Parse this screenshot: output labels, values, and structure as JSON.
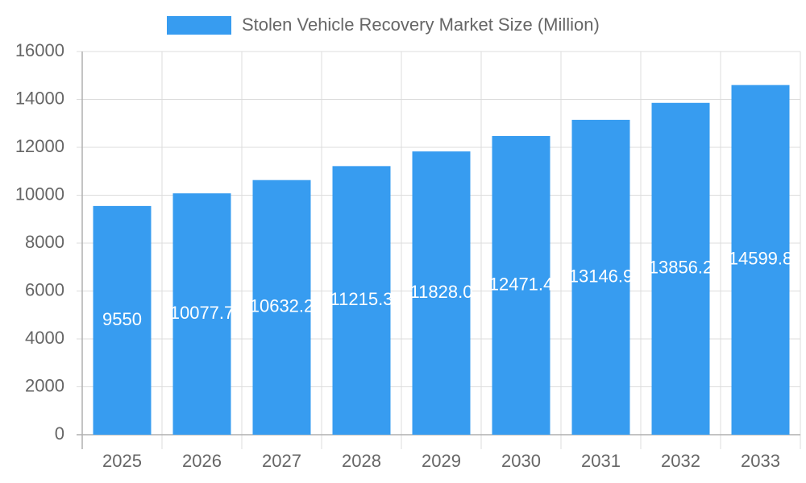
{
  "chart_data": {
    "type": "bar",
    "legend_label": "Stolen Vehicle Recovery Market Size (Million)",
    "categories": [
      "2025",
      "2026",
      "2027",
      "2028",
      "2029",
      "2030",
      "2031",
      "2032",
      "2033"
    ],
    "values": [
      9550,
      10077.7,
      10632.2,
      11215.3,
      11828.0,
      12471.4,
      13146.9,
      13856.2,
      14599.8
    ],
    "value_labels": [
      "9550",
      "10077.7",
      "10632.2",
      "11215.3",
      "11828.0",
      "12471.4",
      "13146.9",
      "13856.2",
      "14599.8"
    ],
    "color": "#379cf0",
    "ylim": [
      0,
      16000
    ],
    "yticks": [
      0,
      2000,
      4000,
      6000,
      8000,
      10000,
      12000,
      14000,
      16000
    ],
    "grid": true
  }
}
